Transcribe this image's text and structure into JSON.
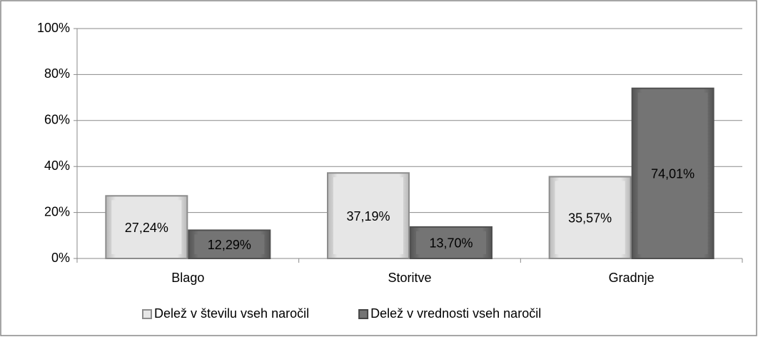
{
  "chart_data": {
    "type": "bar",
    "categories": [
      "Blago",
      "Storitve",
      "Gradnje"
    ],
    "series": [
      {
        "name": "Delež v številu vseh naročil",
        "color": "#e6e6e6",
        "values": [
          27.24,
          37.19,
          35.57
        ],
        "value_labels": [
          "27,24%",
          "37,19%",
          "35,57%"
        ]
      },
      {
        "name": "Delež v vrednosti vseh naročil",
        "color": "#747474",
        "values": [
          12.29,
          13.7,
          74.01
        ],
        "value_labels": [
          "12,29%",
          "13,70%",
          "74,01%"
        ]
      }
    ],
    "ylim": [
      0,
      100
    ],
    "yticks": [
      {
        "value": 0,
        "label": "0%"
      },
      {
        "value": 20,
        "label": "20%"
      },
      {
        "value": 40,
        "label": "40%"
      },
      {
        "value": 60,
        "label": "60%"
      },
      {
        "value": 80,
        "label": "80%"
      },
      {
        "value": 100,
        "label": "100%"
      }
    ],
    "grid": true,
    "legend": "bottom"
  }
}
